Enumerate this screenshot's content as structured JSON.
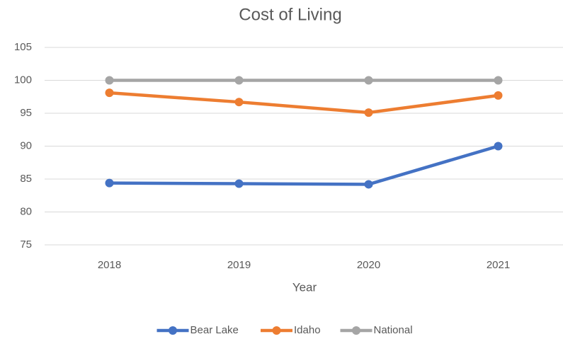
{
  "chart_data": {
    "type": "line",
    "title": "Cost of Living",
    "x_label": "Year",
    "categories": [
      "2018",
      "2019",
      "2020",
      "2021"
    ],
    "series": [
      {
        "name": "Bear Lake",
        "color": "#4472c4",
        "values": [
          84.4,
          84.3,
          84.2,
          90
        ]
      },
      {
        "name": "Idaho",
        "color": "#ed7d31",
        "values": [
          98.1,
          96.7,
          95.1,
          97.7
        ]
      },
      {
        "name": "National",
        "color": "#a5a5a5",
        "values": [
          100,
          100,
          100,
          100
        ]
      }
    ],
    "ylim": [
      75,
      105
    ],
    "yticks": [
      75,
      80,
      85,
      90,
      95,
      100,
      105
    ],
    "grid": true,
    "legend": "bottom"
  }
}
